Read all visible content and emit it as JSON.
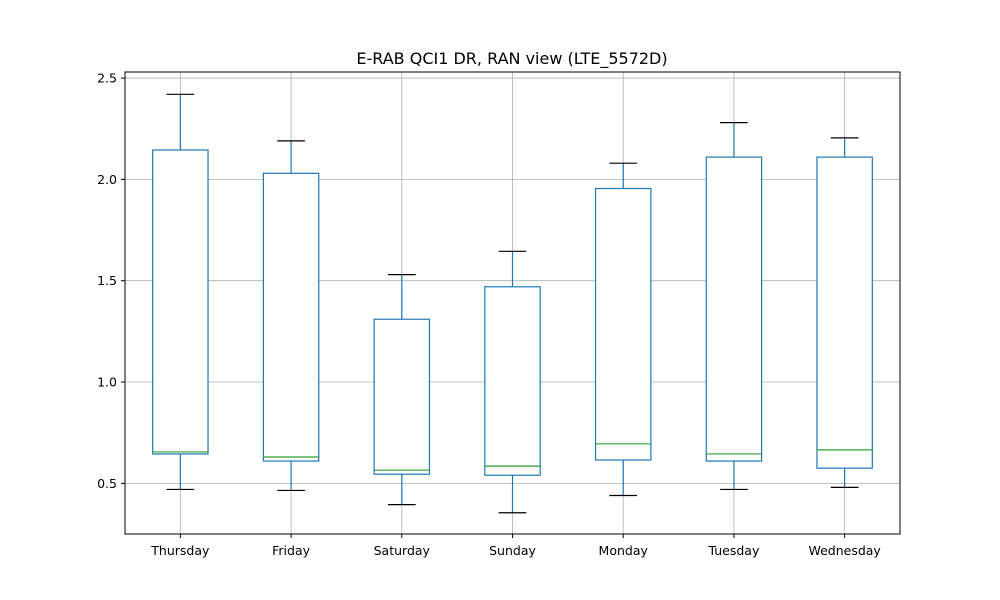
{
  "chart_data": {
    "type": "box",
    "title": "E-RAB QCI1 DR, RAN view (LTE_5572D)",
    "xlabel": "",
    "ylabel": "",
    "categories": [
      "Thursday",
      "Friday",
      "Saturday",
      "Sunday",
      "Monday",
      "Tuesday",
      "Wednesday"
    ],
    "boxes": [
      {
        "whislo": 0.47,
        "q1": 0.645,
        "med": 0.655,
        "q3": 2.145,
        "whishi": 2.42
      },
      {
        "whislo": 0.465,
        "q1": 0.61,
        "med": 0.63,
        "q3": 2.03,
        "whishi": 2.19
      },
      {
        "whislo": 0.395,
        "q1": 0.545,
        "med": 0.565,
        "q3": 1.31,
        "whishi": 1.53
      },
      {
        "whislo": 0.355,
        "q1": 0.54,
        "med": 0.585,
        "q3": 1.47,
        "whishi": 1.645
      },
      {
        "whislo": 0.44,
        "q1": 0.615,
        "med": 0.695,
        "q3": 1.955,
        "whishi": 2.08
      },
      {
        "whislo": 0.47,
        "q1": 0.61,
        "med": 0.645,
        "q3": 2.11,
        "whishi": 2.28
      },
      {
        "whislo": 0.48,
        "q1": 0.575,
        "med": 0.665,
        "q3": 2.11,
        "whishi": 2.205
      }
    ],
    "yticks": [
      0.5,
      1.0,
      1.5,
      2.0,
      2.5
    ],
    "ytick_labels": [
      "0.5",
      "1.0",
      "1.5",
      "2.0",
      "2.5"
    ],
    "ylim": [
      0.25,
      2.53
    ],
    "grid": true,
    "colors": {
      "box": "#1f77b4",
      "median": "#2ca02c",
      "whisker_cap": "#000000",
      "grid": "#b0b0b0"
    }
  }
}
